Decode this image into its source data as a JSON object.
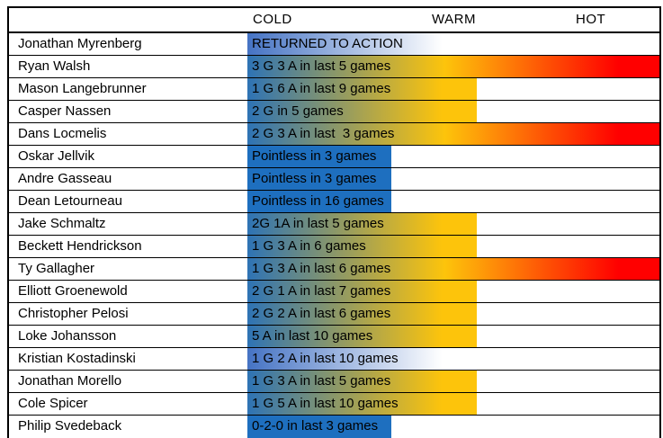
{
  "header": {
    "cold": "COLD",
    "warm": "WARM",
    "hot": "HOT"
  },
  "colors": {
    "cold_blue": "#1e6fbf",
    "gradient_start_blue": "#2e73b5",
    "warm_gold": "#fdc40b",
    "hot_red": "#ff0000",
    "fade_start_blue": "#4573c4",
    "border": "#000000",
    "background": "#ffffff"
  },
  "players": [
    {
      "name": "Jonathan Myrenberg",
      "status": "RETURNED TO ACTION",
      "heat": "fade"
    },
    {
      "name": "Ryan Walsh",
      "status": "3 G 3 A in last 5 games",
      "heat": "hot"
    },
    {
      "name": "Mason Langebrunner",
      "status": "1 G 6 A in last 9 games",
      "heat": "warm"
    },
    {
      "name": "Casper Nassen",
      "status": "2 G in 5 games",
      "heat": "warm"
    },
    {
      "name": "Dans Locmelis",
      "status": "2 G 3 A in last  3 games",
      "heat": "hot"
    },
    {
      "name": "Oskar Jellvik",
      "status": "Pointless in 3 games",
      "heat": "cold"
    },
    {
      "name": "Andre Gasseau",
      "status": "Pointless in 3 games",
      "heat": "cold"
    },
    {
      "name": "Dean Letourneau",
      "status": "Pointless in 16 games",
      "heat": "cold"
    },
    {
      "name": "Jake Schmaltz",
      "status": "2G 1A in last 5 games",
      "heat": "warm"
    },
    {
      "name": "Beckett Hendrickson",
      "status": "1 G 3 A in 6 games",
      "heat": "warm"
    },
    {
      "name": "Ty Gallagher",
      "status": "1 G 3 A in last 6 games",
      "heat": "hot"
    },
    {
      "name": "Elliott Groenewold",
      "status": "2 G 1 A in last 7 games",
      "heat": "warm"
    },
    {
      "name": "Christopher Pelosi",
      "status": "2 G 2 A in last 6 games",
      "heat": "warm"
    },
    {
      "name": "Loke Johansson",
      "status": "5 A in last 10 games",
      "heat": "warm"
    },
    {
      "name": "Kristian Kostadinski",
      "status": "1 G 2 A in last 10 games",
      "heat": "fade"
    },
    {
      "name": "Jonathan Morello",
      "status": "1 G 3 A in last 5 games",
      "heat": "warm"
    },
    {
      "name": "Cole Spicer",
      "status": "1 G 5 A in last 10 games",
      "heat": "warm"
    },
    {
      "name": "Philip Svedeback",
      "status": "0-2-0 in last 3 games",
      "heat": "cold"
    }
  ],
  "chart_data": {
    "type": "heatmap",
    "title": "",
    "scale_labels": [
      "COLD",
      "WARM",
      "HOT"
    ],
    "legend_position": "top",
    "rows": [
      {
        "player": "Jonathan Myrenberg",
        "status": "RETURNED TO ACTION",
        "heat_level": "returned"
      },
      {
        "player": "Ryan Walsh",
        "status": "3 G 3 A in last 5 games",
        "heat_level": "hot"
      },
      {
        "player": "Mason Langebrunner",
        "status": "1 G 6 A in last 9 games",
        "heat_level": "warm"
      },
      {
        "player": "Casper Nassen",
        "status": "2 G in 5 games",
        "heat_level": "warm"
      },
      {
        "player": "Dans Locmelis",
        "status": "2 G 3 A in last  3 games",
        "heat_level": "hot"
      },
      {
        "player": "Oskar Jellvik",
        "status": "Pointless in 3 games",
        "heat_level": "cold"
      },
      {
        "player": "Andre Gasseau",
        "status": "Pointless in 3 games",
        "heat_level": "cold"
      },
      {
        "player": "Dean Letourneau",
        "status": "Pointless in 16 games",
        "heat_level": "cold"
      },
      {
        "player": "Jake Schmaltz",
        "status": "2G 1A in last 5 games",
        "heat_level": "warm"
      },
      {
        "player": "Beckett Hendrickson",
        "status": "1 G 3 A in 6 games",
        "heat_level": "warm"
      },
      {
        "player": "Ty Gallagher",
        "status": "1 G 3 A in last 6 games",
        "heat_level": "hot"
      },
      {
        "player": "Elliott Groenewold",
        "status": "2 G 1 A in last 7 games",
        "heat_level": "warm"
      },
      {
        "player": "Christopher Pelosi",
        "status": "2 G 2 A in last 6 games",
        "heat_level": "warm"
      },
      {
        "player": "Loke Johansson",
        "status": "5 A in last 10 games",
        "heat_level": "warm"
      },
      {
        "player": "Kristian Kostadinski",
        "status": "1 G 2 A in last 10 games",
        "heat_level": "returned"
      },
      {
        "player": "Jonathan Morello",
        "status": "1 G 3 A in last 5 games",
        "heat_level": "warm"
      },
      {
        "player": "Cole Spicer",
        "status": "1 G 5 A in last 10 games",
        "heat_level": "warm"
      },
      {
        "player": "Philip Svedeback",
        "status": "0-2-0 in last 3 games",
        "heat_level": "cold"
      }
    ]
  }
}
